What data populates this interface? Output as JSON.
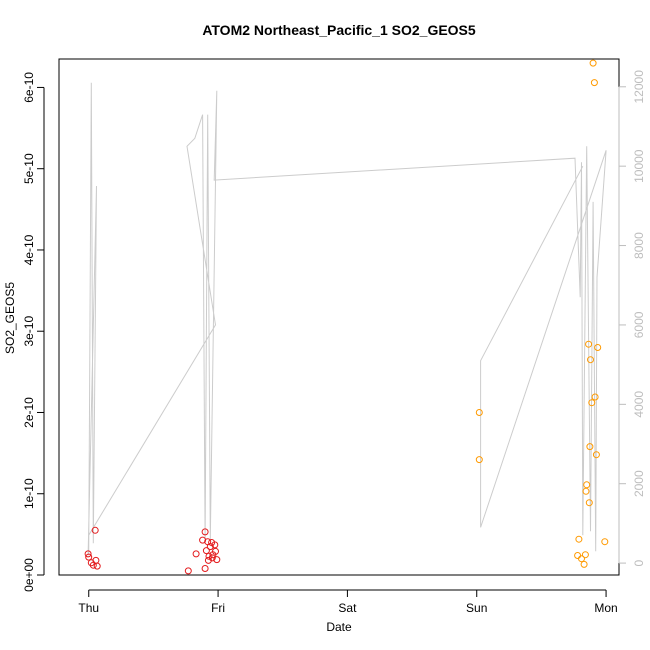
{
  "chart_data": {
    "type": "scatter",
    "title": "ATOM2 Northeast_Pacific_1 SO2_GEOS5",
    "xlabel": "Date",
    "ylabel": "SO2_GEOS5",
    "x_ticks": [
      {
        "value": 0,
        "label": "Thu"
      },
      {
        "value": 1,
        "label": "Fri"
      },
      {
        "value": 2,
        "label": "Sat"
      },
      {
        "value": 3,
        "label": "Sun"
      },
      {
        "value": 4,
        "label": "Mon"
      }
    ],
    "xlim": [
      -0.23,
      4.1
    ],
    "ylim": [
      0,
      6.35e-10
    ],
    "y_ticks": [
      {
        "value": 0,
        "label": "0e+00"
      },
      {
        "value": 1e-10,
        "label": "1e-10"
      },
      {
        "value": 2e-10,
        "label": "2e-10"
      },
      {
        "value": 3e-10,
        "label": "3e-10"
      },
      {
        "value": 4e-10,
        "label": "4e-10"
      },
      {
        "value": 5e-10,
        "label": "5e-10"
      },
      {
        "value": 6e-10,
        "label": "6e-10"
      }
    ],
    "y2lim": [
      -300,
      12700
    ],
    "y2_ticks": [
      {
        "value": 0,
        "label": "0"
      },
      {
        "value": 2000,
        "label": "2000"
      },
      {
        "value": 4000,
        "label": "4000"
      },
      {
        "value": 6000,
        "label": "6000"
      },
      {
        "value": 8000,
        "label": "8000"
      },
      {
        "value": 10000,
        "label": "10000"
      },
      {
        "value": 12000,
        "label": "12000"
      }
    ],
    "grid": false,
    "colors": {
      "red": "#e31a1c",
      "orange": "#ff9a00",
      "altitude": "#cccccc",
      "axis": "#000000",
      "axis_right": "#bdbdbd"
    },
    "series": [
      {
        "color": "#e31a1c",
        "points": [
          [
            -0.005,
            2.6e-11
          ],
          [
            0.0,
            2.2e-11
          ],
          [
            0.02,
            1.5e-11
          ],
          [
            0.035,
            1.2e-11
          ],
          [
            0.05,
            5.5e-11
          ],
          [
            0.055,
            1.8e-11
          ],
          [
            0.065,
            1.1e-11
          ],
          [
            0.77,
            5e-12
          ],
          [
            0.83,
            2.6e-11
          ],
          [
            0.88,
            4.3e-11
          ],
          [
            0.9,
            5.3e-11
          ],
          [
            0.9,
            8e-12
          ],
          [
            0.91,
            3e-11
          ],
          [
            0.92,
            4.1e-11
          ],
          [
            0.925,
            1.8e-11
          ],
          [
            0.93,
            2.3e-11
          ],
          [
            0.94,
            3.5e-11
          ],
          [
            0.95,
            4e-11
          ],
          [
            0.955,
            2.1e-11
          ],
          [
            0.96,
            2.5e-11
          ],
          [
            0.975,
            3.7e-11
          ],
          [
            0.98,
            2.9e-11
          ],
          [
            0.99,
            1.9e-11
          ]
        ]
      },
      {
        "color": "#ff9a00",
        "points": [
          [
            3.02,
            2e-10
          ],
          [
            3.02,
            1.42e-10
          ],
          [
            3.78,
            2.4e-11
          ],
          [
            3.79,
            4.4e-11
          ],
          [
            3.81,
            2e-11
          ],
          [
            3.83,
            1.3e-11
          ],
          [
            3.84,
            2.5e-11
          ],
          [
            3.845,
            1.03e-10
          ],
          [
            3.85,
            1.11e-10
          ],
          [
            3.865,
            2.84e-10
          ],
          [
            3.87,
            8.9e-11
          ],
          [
            3.875,
            1.58e-10
          ],
          [
            3.88,
            2.65e-10
          ],
          [
            3.89,
            2.12e-10
          ],
          [
            3.9,
            6.3e-10
          ],
          [
            3.91,
            6.06e-10
          ],
          [
            3.915,
            2.19e-10
          ],
          [
            3.925,
            1.48e-10
          ],
          [
            3.935,
            2.8e-10
          ],
          [
            3.99,
            4.1e-11
          ]
        ]
      }
    ],
    "altitude_line": [
      [
        0.0,
        200
      ],
      [
        0.02,
        12100
      ],
      [
        0.035,
        500
      ],
      [
        0.06,
        9500
      ],
      [
        -0.005,
        200
      ],
      [
        0.0,
        700
      ],
      [
        0.98,
        6000
      ],
      [
        0.76,
        10500
      ],
      [
        0.82,
        10700
      ],
      [
        0.88,
        11300
      ],
      [
        0.9,
        500
      ],
      [
        0.92,
        11300
      ],
      [
        0.94,
        600
      ],
      [
        0.99,
        11900
      ],
      [
        0.97,
        9650
      ],
      [
        3.76,
        10200
      ],
      [
        3.8,
        6700
      ],
      [
        3.81,
        10100
      ],
      [
        3.82,
        700
      ],
      [
        3.85,
        10500
      ],
      [
        3.88,
        800
      ],
      [
        3.9,
        9100
      ],
      [
        3.92,
        300
      ],
      [
        3.93,
        7200
      ],
      [
        4.0,
        10400
      ],
      [
        3.03,
        900
      ],
      [
        3.03,
        5100
      ],
      [
        3.82,
        10000
      ]
    ]
  }
}
